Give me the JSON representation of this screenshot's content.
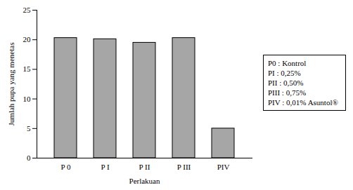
{
  "chart_data": {
    "type": "bar",
    "x_label": "Perlakuan",
    "y_label": "Jumlah pupa yang menetas",
    "categories": [
      "P 0",
      "P I",
      "P II",
      "P III",
      "PIV"
    ],
    "values": [
      20.3,
      20.1,
      19.5,
      20.3,
      5.0
    ],
    "color": "#a6a6a6",
    "ylim": [
      0,
      25
    ],
    "yticks": [
      0,
      5,
      10,
      15,
      20,
      25
    ],
    "grid": false,
    "annotations": [
      "P0 : Kontrol",
      "PI : 0,25%",
      "PII : 0,50%",
      "PIII : 0,75%",
      "PIV : 0,01% Asuntol®"
    ]
  }
}
